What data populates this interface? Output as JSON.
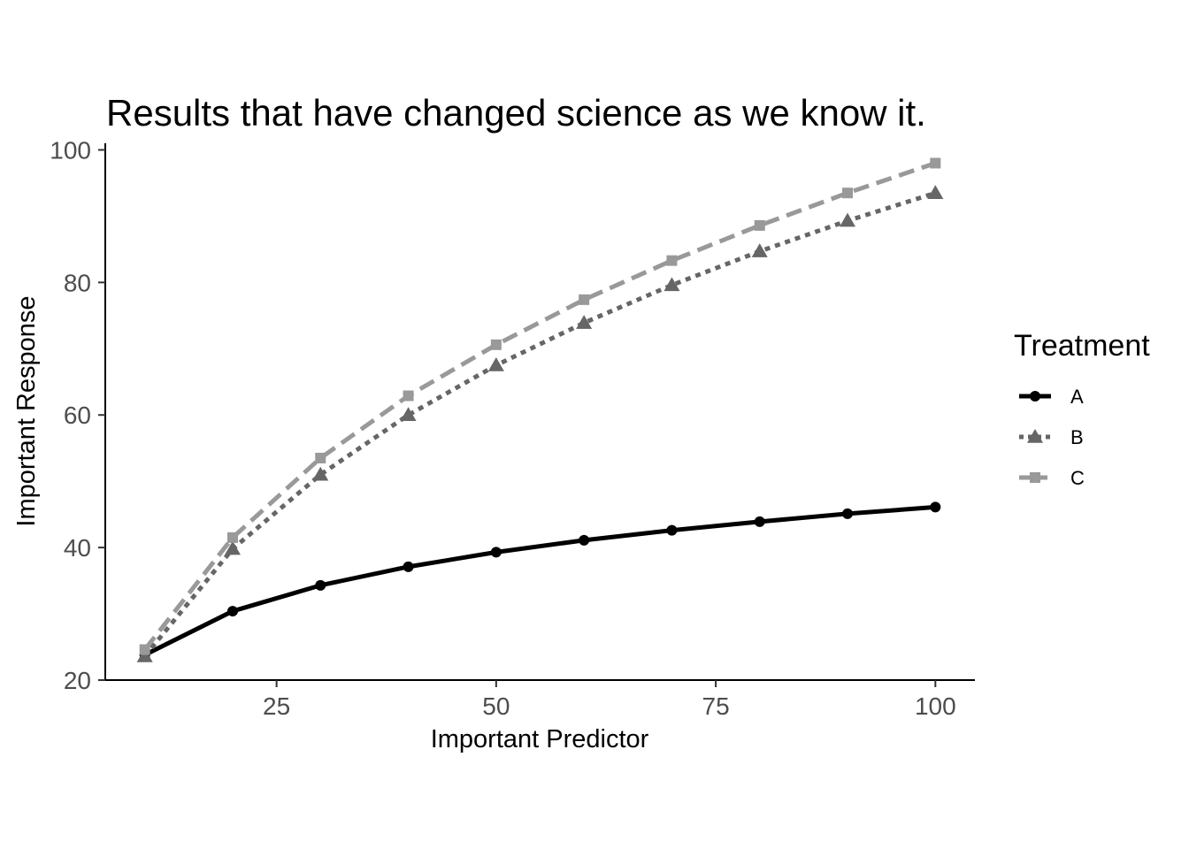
{
  "chart_data": {
    "type": "line",
    "title": "Results that have changed science as we know it.",
    "xlabel": "Important Predictor",
    "ylabel": "Important Response",
    "x": [
      10,
      20,
      30,
      40,
      50,
      60,
      70,
      80,
      90,
      100
    ],
    "xlim": [
      5.5,
      104.5
    ],
    "ylim": [
      20,
      101
    ],
    "x_ticks": [
      25,
      50,
      75,
      100
    ],
    "y_ticks": [
      20,
      40,
      60,
      80,
      100
    ],
    "x_tick_labels": [
      "25",
      "50",
      "75",
      "100"
    ],
    "y_tick_labels": [
      "20",
      "40",
      "60",
      "80",
      "100"
    ],
    "grid": false,
    "legend": {
      "title": "Treatment",
      "position": "right"
    },
    "series": [
      {
        "name": "A",
        "values": [
          23.8,
          30.4,
          34.3,
          37.1,
          39.3,
          41.1,
          42.6,
          43.9,
          45.1,
          46.1
        ],
        "color": "#000000",
        "line_style": "solid",
        "marker": "circle"
      },
      {
        "name": "B",
        "values": [
          23.6,
          39.8,
          51.0,
          60.0,
          67.5,
          73.9,
          79.6,
          84.7,
          89.3,
          93.5
        ],
        "color": "#666666",
        "line_style": "dotted",
        "marker": "triangle"
      },
      {
        "name": "C",
        "values": [
          24.6,
          41.5,
          53.5,
          62.9,
          70.6,
          77.4,
          83.3,
          88.6,
          93.5,
          98.0
        ],
        "color": "#999999",
        "line_style": "dashed",
        "marker": "square"
      }
    ]
  }
}
